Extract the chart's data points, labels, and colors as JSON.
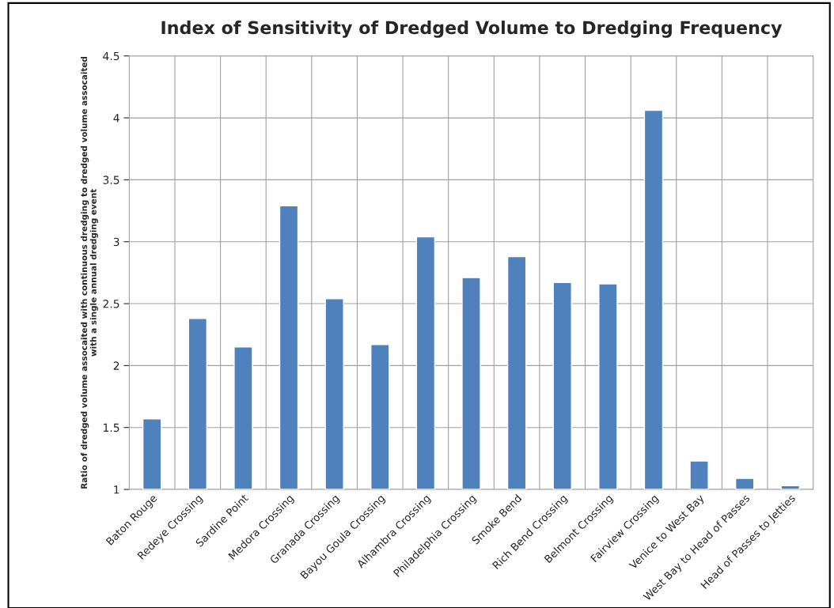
{
  "chart_data": {
    "type": "bar",
    "title": "Index of Sensitivity of Dredged Volume to Dredging Frequency",
    "ylabel": "Ratio of dredged volume assocaited with continuous dredging to dredged volume assocaited\nwith a single annual dredging event",
    "categories": [
      "Baton Rouge",
      "Redeye Crossing",
      "Sardine Point",
      "Medora Crossing",
      "Granada Crossing",
      "Bayou Goula Crossing",
      "Alhambra Crossing",
      "Philadelphia Crossing",
      "Smoke Bend",
      "Rich Bend Crossing",
      "Belmont Crossing",
      "Fairview Crossing",
      "Venice to West Bay",
      "West Bay to Head of Passes",
      "Head of Passes to Jetties"
    ],
    "values": [
      1.57,
      2.38,
      2.15,
      3.29,
      2.54,
      2.17,
      3.04,
      2.71,
      2.88,
      2.67,
      2.66,
      4.06,
      1.23,
      1.09,
      1.03
    ],
    "color": "#4f81bd",
    "ylim": [
      1,
      4.5
    ],
    "yticks": [
      1,
      1.5,
      2,
      2.5,
      3,
      3.5,
      4,
      4.5
    ],
    "grid": true
  }
}
